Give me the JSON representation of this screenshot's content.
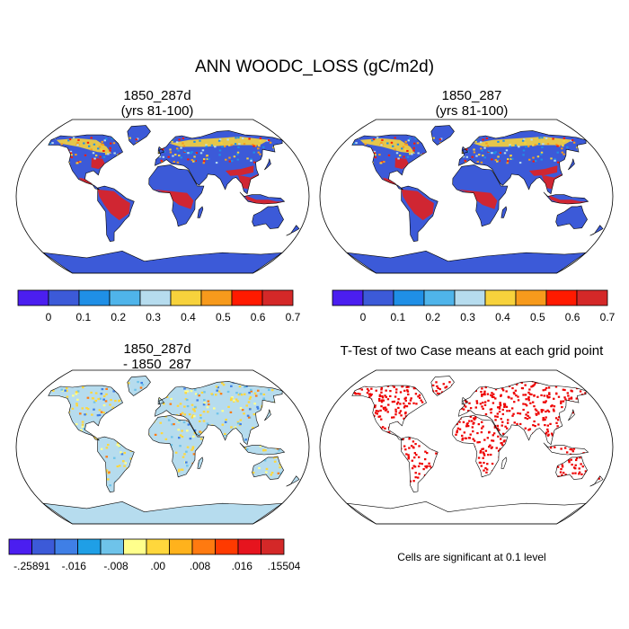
{
  "title": "ANN WOODC_LOSS (gC/m2d)",
  "panels": {
    "top_left": {
      "title_line1": "1850_287d",
      "title_line2": "(yrs 81-100)"
    },
    "top_right": {
      "title_line1": "1850_287",
      "title_line2": "(yrs 81-100)"
    },
    "bottom_left": {
      "title_line1": "1850_287d",
      "title_line2": "- 1850_287"
    },
    "bottom_right": {
      "title_line1": "T-Test of two Case means at each grid point",
      "note": "Cells are significant at 0.1 level"
    }
  },
  "colorbar_main": {
    "colors": [
      "#4b1ef0",
      "#3c5ad8",
      "#1f8fe6",
      "#4fb4ea",
      "#b6dcee",
      "#f7d23c",
      "#f79a1c",
      "#ff1a00",
      "#d42828"
    ],
    "labels": [
      "0",
      "0.1",
      "0.2",
      "0.3",
      "0.4",
      "0.5",
      "0.6",
      "0.7"
    ]
  },
  "colorbar_diff": {
    "colors": [
      "#4b1ef0",
      "#3c5ad8",
      "#3f7fe6",
      "#1f9fe6",
      "#6ec3ea",
      "#ffff8c",
      "#ffd73c",
      "#ffb21c",
      "#ff7a10",
      "#ff3a00",
      "#e6141e",
      "#d42828"
    ],
    "labels": [
      "-.25891",
      "-.016",
      "-.008",
      ".00",
      ".008",
      ".016",
      ".15504"
    ]
  },
  "map_colors": {
    "base": "#3c5ad8",
    "tropics": "#e02020",
    "boreal": "#f7d23c",
    "diff_base": "#b6dcee",
    "diff_pos": "#ffd73c",
    "diff_neg": "#3f7fe6",
    "sig": "#ee0000"
  }
}
